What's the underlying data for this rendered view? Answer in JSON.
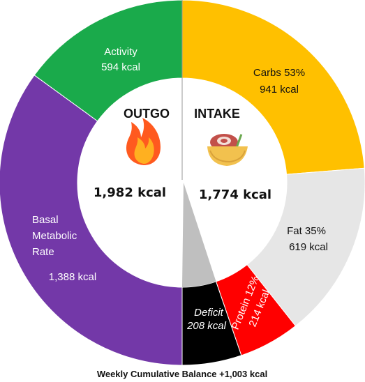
{
  "chart_data": {
    "type": "pie",
    "variant": "split-donut",
    "title": "",
    "footer": "Weekly Cumulative Balance +1,003 kcal",
    "outgo": {
      "header": "OUTGO",
      "icon": "fire-icon",
      "total_label": "1,982 kcal",
      "total": 1982,
      "segments": [
        {
          "name": "Activity",
          "value_label": "594 kcal",
          "value": 594,
          "color": "#1aaa4b"
        },
        {
          "name": "Basal Metabolic Rate",
          "lines": [
            "Basal",
            "Metabolic",
            "Rate"
          ],
          "value_label": "1,388 kcal",
          "value": 1388,
          "color": "#7338a8"
        }
      ]
    },
    "intake": {
      "header": "INTAKE",
      "icon": "food-bowl-icon",
      "total_label": "1,774 kcal",
      "total": 1774,
      "segments": [
        {
          "name": "Carbs 53%",
          "value_label": "941 kcal",
          "value": 941,
          "percent": 53,
          "color": "#ffc000"
        },
        {
          "name": "Fat 35%",
          "value_label": "619 kcal",
          "value": 619,
          "percent": 35,
          "color": "#e6e6e6"
        },
        {
          "name": "Protein 12%",
          "value_label": "214 kcal",
          "value": 214,
          "percent": 12,
          "color": "#ff0000"
        },
        {
          "name": "Deficit",
          "value_label": "208 kcal",
          "value": 208,
          "color": "#000000"
        }
      ]
    }
  }
}
